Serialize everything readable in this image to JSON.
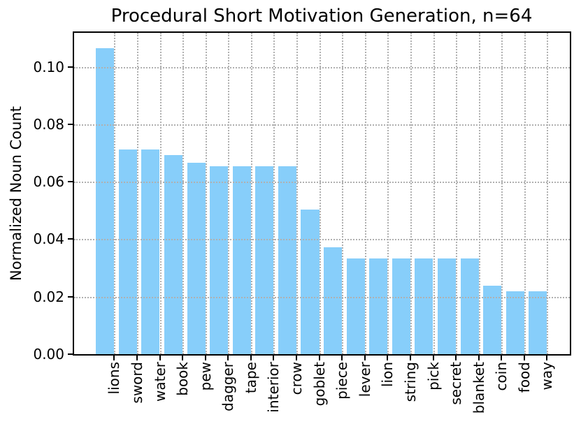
{
  "chart_data": {
    "type": "bar",
    "title": "Procedural Short Motivation Generation, n=64",
    "xlabel": "",
    "ylabel": "Normalized Noun Count",
    "categories": [
      "lions",
      "sword",
      "water",
      "book",
      "pew",
      "dagger",
      "tape",
      "interior",
      "crow",
      "goblet",
      "piece",
      "lever",
      "lion",
      "string",
      "pick",
      "secret",
      "blanket",
      "coin",
      "food",
      "way"
    ],
    "values": [
      0.1064,
      0.0713,
      0.0713,
      0.0693,
      0.0665,
      0.0655,
      0.0655,
      0.0655,
      0.0655,
      0.0503,
      0.0371,
      0.0333,
      0.0333,
      0.0333,
      0.0333,
      0.0333,
      0.0333,
      0.0238,
      0.0219,
      0.0219
    ],
    "yticks": [
      0.0,
      0.02,
      0.04,
      0.06,
      0.08,
      0.1
    ],
    "ytick_labels": [
      "0.00",
      "0.02",
      "0.04",
      "0.06",
      "0.08",
      "0.10"
    ],
    "ylim": [
      0,
      0.1118
    ],
    "grid": true,
    "grid_linestyle": "dotted",
    "grid_position": "above-bars",
    "legend": "none",
    "colors": {
      "bar_fill": "#87CEFA",
      "grid": "#b0b0b0",
      "axis": "#000000",
      "background": "#ffffff",
      "text": "#000000"
    }
  }
}
